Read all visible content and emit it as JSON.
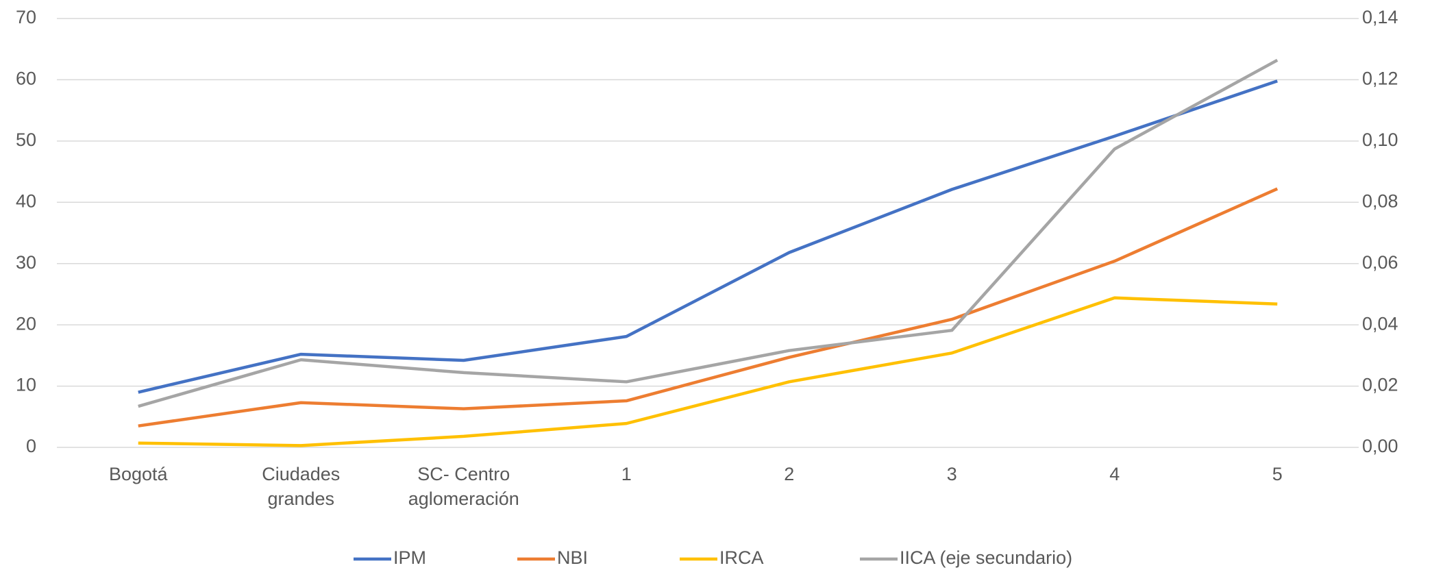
{
  "chart_data": {
    "type": "line",
    "categories": [
      "Bogotá",
      "Ciudades grandes",
      "SC- Centro aglomeración",
      "1",
      "2",
      "3",
      "4",
      "5"
    ],
    "series": [
      {
        "name": "IPM",
        "color": "#4472c4",
        "values": [
          9.0,
          15.2,
          14.2,
          18.1,
          31.8,
          42.1,
          50.8,
          59.8
        ]
      },
      {
        "name": "NBI",
        "color": "#ed7d31",
        "values": [
          3.5,
          7.3,
          6.3,
          7.6,
          14.7,
          20.9,
          30.4,
          42.2
        ]
      },
      {
        "name": "IRCA",
        "color": "#ffc000",
        "values": [
          0.7,
          0.3,
          1.8,
          3.9,
          10.7,
          15.4,
          24.4,
          23.4
        ]
      },
      {
        "name": "IICA (eje secundario)",
        "color": "#a5a5a5",
        "axis": "y2",
        "values": [
          0.0134,
          0.0286,
          0.0244,
          0.0214,
          0.0316,
          0.0382,
          0.0974,
          0.1264
        ]
      }
    ],
    "ylim": [
      0,
      70
    ],
    "yticks": [
      0,
      10,
      20,
      30,
      40,
      50,
      60,
      70
    ],
    "y2lim": [
      0,
      0.14
    ],
    "y2ticks": [
      {
        "value": 0,
        "label": "0,00"
      },
      {
        "value": 0.02,
        "label": "0,02"
      },
      {
        "value": 0.04,
        "label": "0,04"
      },
      {
        "value": 0.06,
        "label": "0,06"
      },
      {
        "value": 0.08,
        "label": "0,08"
      },
      {
        "value": 0.1,
        "label": "0,10"
      },
      {
        "value": 0.12,
        "label": "0,12"
      },
      {
        "value": 0.14,
        "label": "0,14"
      }
    ],
    "grid": true,
    "legend": "bottom"
  }
}
